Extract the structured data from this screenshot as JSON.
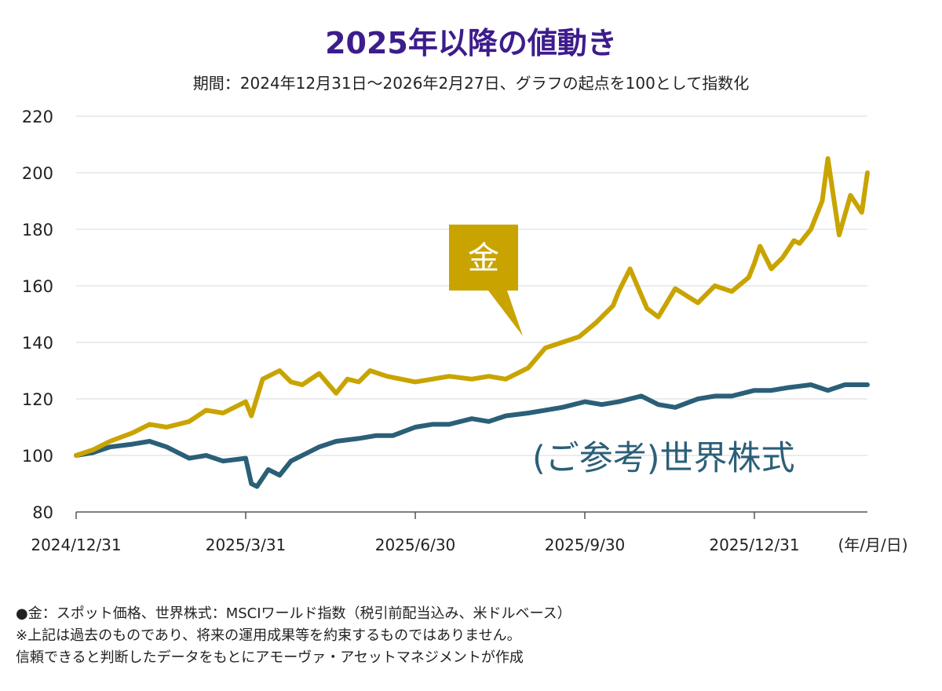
{
  "title": "2025年以降の値動き",
  "subtitle": "期間：2024年12月31日～2026年2月27日、グラフの起点を100として指数化",
  "notes": [
    "●金：スポット価格、世界株式：MSCIワールド指数（税引前配当込み、米ドルベース）",
    "※上記は過去のものであり、将来の運用成果等を約束するものではありません。",
    "信頼できると判断したデータをもとにアモーヴァ・アセットマネジメントが作成"
  ],
  "chart_data": {
    "type": "line",
    "title": "2025年以降の値動き",
    "xlabel": "(年/月/日)",
    "ylabel": "",
    "ylim": [
      80,
      220
    ],
    "yticks": [
      "80",
      "100",
      "120",
      "140",
      "160",
      "180",
      "200",
      "220"
    ],
    "x_ticks": [
      "2024/12/31",
      "2025/3/31",
      "2025/6/30",
      "2025/9/30",
      "2025/12/31"
    ],
    "x_range_months": [
      0,
      14
    ],
    "grid": true,
    "colors": {
      "gold": "#c9a400",
      "world": "#2b5f78",
      "label_box": "#c9a400",
      "title": "#3d1c8c"
    },
    "series": [
      {
        "name": "金",
        "label": "金",
        "x": [
          0,
          0.3,
          0.6,
          1.0,
          1.3,
          1.6,
          2.0,
          2.3,
          2.6,
          3.0,
          3.1,
          3.3,
          3.6,
          3.8,
          4.0,
          4.3,
          4.6,
          4.8,
          5.0,
          5.2,
          5.5,
          6.0,
          6.3,
          6.6,
          7.0,
          7.3,
          7.6,
          8.0,
          8.3,
          8.6,
          8.9,
          9.2,
          9.5,
          9.6,
          9.8,
          10.1,
          10.3,
          10.6,
          11.0,
          11.3,
          11.6,
          11.9,
          12.0,
          12.1,
          12.3,
          12.5,
          12.7,
          12.8,
          13.0,
          13.2,
          13.3,
          13.5,
          13.7,
          13.9,
          14.0
        ],
        "values": [
          100,
          102,
          105,
          108,
          111,
          110,
          112,
          116,
          115,
          119,
          114,
          127,
          130,
          126,
          125,
          129,
          122,
          127,
          126,
          130,
          128,
          126,
          127,
          128,
          127,
          128,
          127,
          131,
          138,
          140,
          142,
          147,
          153,
          158,
          166,
          152,
          149,
          159,
          154,
          160,
          158,
          163,
          168,
          174,
          166,
          170,
          176,
          175,
          180,
          190,
          205,
          178,
          192,
          186,
          200
        ]
      },
      {
        "name": "(ご参考)世界株式",
        "label": "(ご参考)世界株式",
        "x": [
          0,
          0.3,
          0.6,
          1.0,
          1.3,
          1.6,
          2.0,
          2.3,
          2.6,
          3.0,
          3.1,
          3.2,
          3.4,
          3.6,
          3.8,
          4.0,
          4.3,
          4.6,
          5.0,
          5.3,
          5.6,
          6.0,
          6.3,
          6.6,
          7.0,
          7.3,
          7.6,
          8.0,
          8.3,
          8.6,
          9.0,
          9.3,
          9.6,
          10.0,
          10.3,
          10.6,
          11.0,
          11.3,
          11.6,
          12.0,
          12.3,
          12.6,
          13.0,
          13.3,
          13.6,
          14.0
        ],
        "values": [
          100,
          101,
          103,
          104,
          105,
          103,
          99,
          100,
          98,
          99,
          90,
          89,
          95,
          93,
          98,
          100,
          103,
          105,
          106,
          107,
          107,
          110,
          111,
          111,
          113,
          112,
          114,
          115,
          116,
          117,
          119,
          118,
          119,
          121,
          118,
          117,
          120,
          121,
          121,
          123,
          123,
          124,
          125,
          123,
          125,
          125
        ]
      }
    ]
  }
}
